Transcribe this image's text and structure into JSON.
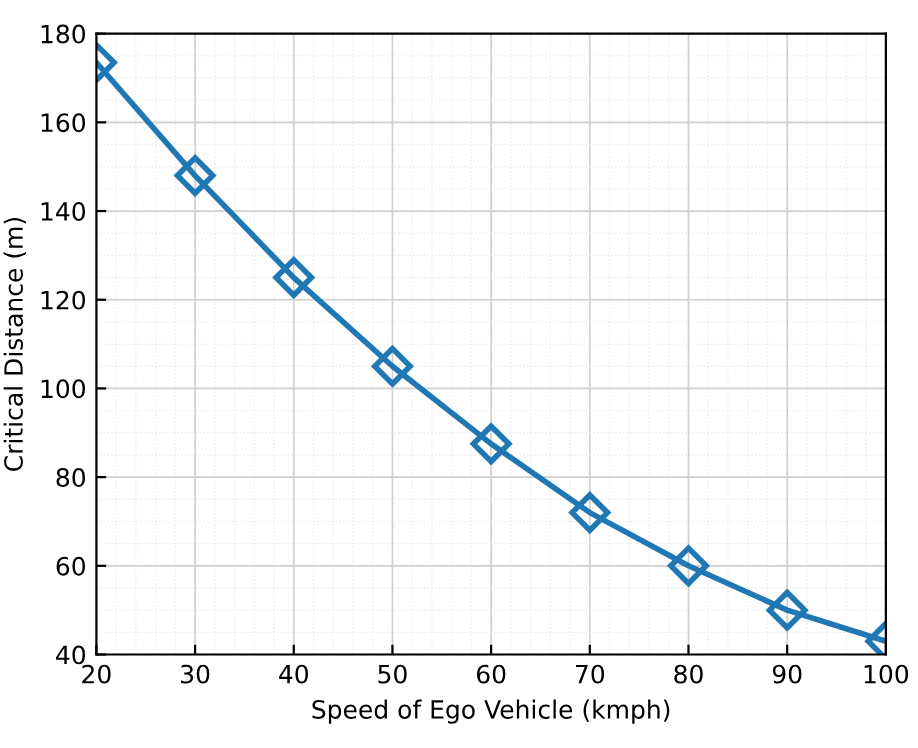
{
  "chart_data": {
    "type": "line",
    "xlabel": "Speed of Ego Vehicle (kmph)",
    "ylabel": "Critical Distance (m)",
    "x": [
      20,
      30,
      40,
      50,
      60,
      70,
      80,
      90,
      100
    ],
    "series": [
      {
        "color": "#1f77b4",
        "values": [
          173.5,
          148,
          125,
          105,
          87.5,
          72,
          60,
          50,
          43
        ]
      }
    ],
    "xlim": [
      20,
      100
    ],
    "ylim": [
      40,
      180
    ],
    "xticks": [
      20,
      30,
      40,
      50,
      60,
      70,
      80,
      90,
      100
    ],
    "yticks": [
      40,
      60,
      80,
      100,
      120,
      140,
      160,
      180
    ],
    "grid": true,
    "marker": "diamond",
    "line_style": "solid",
    "legend": false
  }
}
